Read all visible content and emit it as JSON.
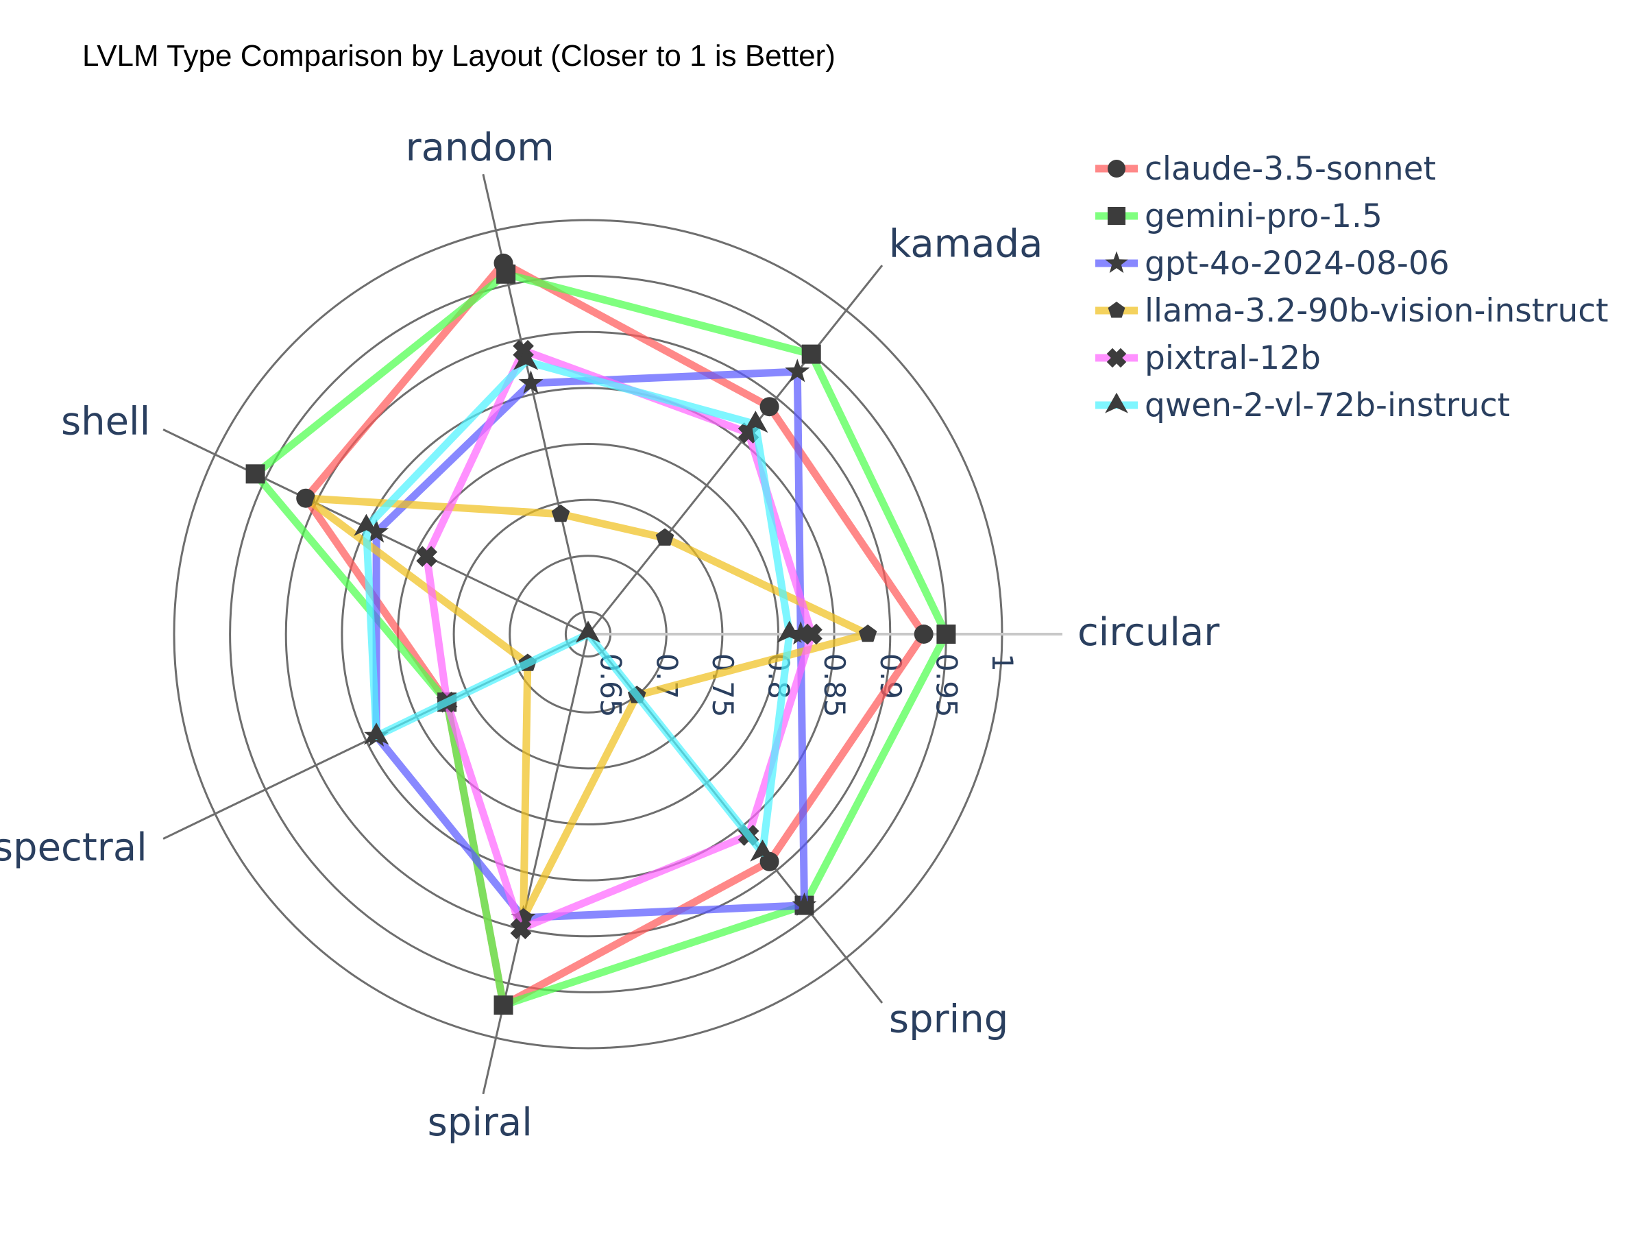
{
  "chart_data": {
    "type": "radar",
    "title": "LVLM Type Comparison by Layout (Closer to 1 is Better)",
    "categories": [
      "circular",
      "kamada",
      "random",
      "shell",
      "spectral",
      "spiral",
      "spring"
    ],
    "radial_range": [
      0.63,
      1.0
    ],
    "radial_ticks": [
      "0.65",
      "0.7",
      "0.75",
      "0.8",
      "0.85",
      "0.9",
      "0.95",
      "1"
    ],
    "radial_tick_values": [
      0.65,
      0.7,
      0.75,
      0.8,
      0.85,
      0.9,
      0.95,
      1.0
    ],
    "legend_position": "top-right",
    "series": [
      {
        "name": "claude-3.5-sonnet",
        "marker": "circle",
        "color": "#ff5a5a",
        "values": [
          0.93,
          0.89,
          0.97,
          0.91,
          0.77,
          0.97,
          0.89
        ]
      },
      {
        "name": "gemini-pro-1.5",
        "marker": "square",
        "color": "#4dff4d",
        "values": [
          0.95,
          0.95,
          0.96,
          0.96,
          0.77,
          0.97,
          0.94
        ]
      },
      {
        "name": "gpt-4o-2024-08-06",
        "marker": "star",
        "color": "#5a5aff",
        "values": [
          0.82,
          0.93,
          0.86,
          0.84,
          0.84,
          0.89,
          0.94
        ]
      },
      {
        "name": "llama-3.2-90b-vision-instruct",
        "marker": "pentagon",
        "color": "#f0c020",
        "values": [
          0.88,
          0.74,
          0.74,
          0.91,
          0.69,
          0.89,
          0.7
        ]
      },
      {
        "name": "pixtral-12b",
        "marker": "x",
        "color": "#ff66ff",
        "values": [
          0.83,
          0.86,
          0.89,
          0.79,
          0.77,
          0.9,
          0.86
        ]
      },
      {
        "name": "qwen-2-vl-72b-instruct",
        "marker": "triangle",
        "color": "#4df2ff",
        "values": [
          0.81,
          0.87,
          0.88,
          0.85,
          0.84,
          0.62,
          0.88
        ]
      }
    ]
  }
}
